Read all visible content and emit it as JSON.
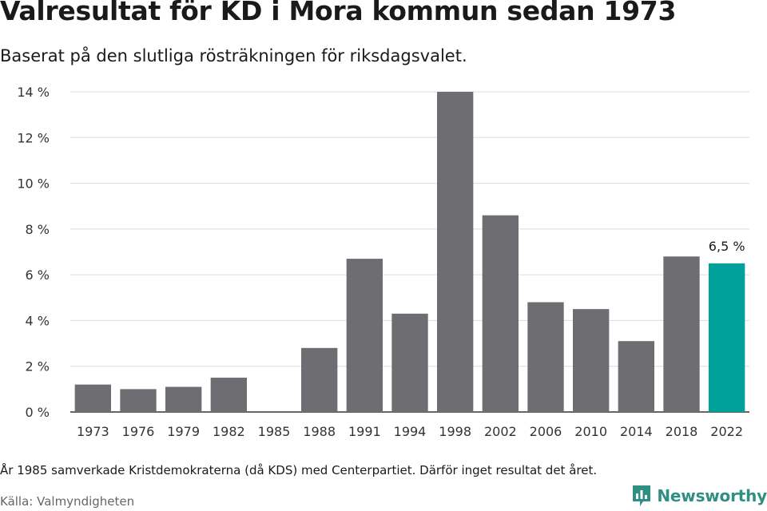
{
  "title": "Valresultat för KD i Mora kommun sedan 1973",
  "subtitle": "Baserat på den slutliga rösträkningen för riksdagsvalet.",
  "note": "År 1985 samverkade Kristdemokraterna (då KDS) med Centerpartiet. Därför inget resultat det året.",
  "source": "Källa: Valmyndigheten",
  "brand": {
    "name": "Newsworthy",
    "color": "#2f8f83",
    "icon": "bar-chart-bubble-icon"
  },
  "chart_data": {
    "type": "bar",
    "categories": [
      "1973",
      "1976",
      "1979",
      "1982",
      "1985",
      "1988",
      "1991",
      "1994",
      "1998",
      "2002",
      "2006",
      "2010",
      "2014",
      "2018",
      "2022"
    ],
    "values": [
      1.2,
      1.0,
      1.1,
      1.5,
      null,
      2.8,
      6.7,
      4.3,
      14.0,
      8.6,
      4.8,
      4.5,
      3.1,
      6.8,
      6.5
    ],
    "ylim": [
      0,
      14
    ],
    "yticks": [
      0,
      2,
      4,
      6,
      8,
      10,
      12,
      14
    ],
    "ytick_labels": [
      "0 %",
      "2 %",
      "4 %",
      "6 %",
      "8 %",
      "10 %",
      "12 %",
      "14 %"
    ],
    "grid": true,
    "bar_color": "#6e6d72",
    "highlight_color": "#00a19a",
    "highlight_index": 14,
    "annotation": {
      "index": 14,
      "text": "6,5 %"
    }
  }
}
